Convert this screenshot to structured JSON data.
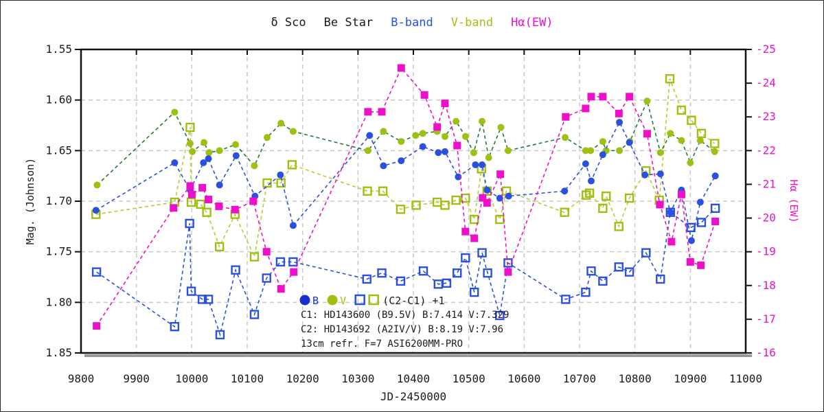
{
  "title": {
    "segments": [
      {
        "id": "object-name",
        "text": "δ Sco",
        "color": "#1a1a1a"
      },
      {
        "id": "object-type",
        "text": "Be Star",
        "color": "#1a1a1a"
      },
      {
        "id": "b-band",
        "text": "B-band",
        "color": "#2b50dd"
      },
      {
        "id": "v-band",
        "text": "V-band",
        "color": "#9fc013"
      },
      {
        "id": "halpha",
        "text": "Hα(EW)",
        "color": "#ee10c8"
      }
    ]
  },
  "chart_data": {
    "type": "line",
    "x_axis": {
      "label": "JD-2450000",
      "min": 9800,
      "max": 11000,
      "ticks": [
        "9800",
        "9900",
        "10000",
        "10100",
        "10200",
        "10300",
        "10400",
        "10500",
        "10600",
        "10700",
        "10800",
        "10900",
        "11000"
      ]
    },
    "y_axis_left": {
      "label": "Mag. (Johnson)",
      "min": 1.55,
      "max": 1.85,
      "ticks": [
        "1.55",
        "1.60",
        "1.65",
        "1.70",
        "1.75",
        "1.80",
        "1.85"
      ],
      "color": "#1a1a1a"
    },
    "y_axis_right": {
      "label": "Hα (EW)",
      "min": -25,
      "max": -16,
      "ticks": [
        "-25",
        "-24",
        "-23",
        "-22",
        "-21",
        "-20",
        "-19",
        "-18",
        "-17",
        "-16"
      ],
      "color": "#ee10c8"
    },
    "grid": {
      "color": "#c9c9c9",
      "style": "dashed"
    },
    "series": [
      {
        "name": "(C2-C1)+1 V",
        "axis": "left",
        "marker": "open-square",
        "marker_color": "#9fc013",
        "line_color": "#b6ce2a",
        "points": [
          [
            9827,
            1.713
          ],
          [
            9969,
            1.701
          ],
          [
            9997,
            1.627
          ],
          [
            9999,
            1.701
          ],
          [
            10016,
            1.703
          ],
          [
            10027,
            1.711
          ],
          [
            10050,
            1.745
          ],
          [
            10078,
            1.713
          ],
          [
            10113,
            1.755
          ],
          [
            10136,
            1.682
          ],
          [
            10161,
            1.682
          ],
          [
            10181,
            1.664
          ],
          [
            10317,
            1.69
          ],
          [
            10345,
            1.69
          ],
          [
            10377,
            1.708
          ],
          [
            10405,
            1.704
          ],
          [
            10443,
            1.701
          ],
          [
            10457,
            1.704
          ],
          [
            10477,
            1.699
          ],
          [
            10494,
            1.697
          ],
          [
            10510,
            1.718
          ],
          [
            10523,
            1.668
          ],
          [
            10533,
            1.69
          ],
          [
            10556,
            1.718
          ],
          [
            10568,
            1.69
          ],
          [
            10673,
            1.711
          ],
          [
            10712,
            1.694
          ],
          [
            10718,
            1.692
          ],
          [
            10742,
            1.707
          ],
          [
            10748,
            1.695
          ],
          [
            10771,
            1.725
          ],
          [
            10790,
            1.697
          ],
          [
            10820,
            1.67
          ],
          [
            10844,
            1.699
          ],
          [
            10863,
            1.579
          ],
          [
            10884,
            1.61
          ],
          [
            10902,
            1.62
          ],
          [
            10920,
            1.633
          ],
          [
            10944,
            1.643
          ]
        ]
      },
      {
        "name": "(C2-C1)+1 B",
        "axis": "left",
        "marker": "open-square",
        "marker_color": "#2b50dd",
        "line_color": "#2b50dd",
        "points": [
          [
            9828,
            1.77
          ],
          [
            9969,
            1.824
          ],
          [
            9996,
            1.722
          ],
          [
            9999,
            1.789
          ],
          [
            10019,
            1.797
          ],
          [
            10030,
            1.797
          ],
          [
            10051,
            1.832
          ],
          [
            10079,
            1.768
          ],
          [
            10113,
            1.812
          ],
          [
            10135,
            1.776
          ],
          [
            10160,
            1.76
          ],
          [
            10183,
            1.76
          ],
          [
            10316,
            1.777
          ],
          [
            10343,
            1.771
          ],
          [
            10377,
            1.779
          ],
          [
            10418,
            1.769
          ],
          [
            10445,
            1.782
          ],
          [
            10460,
            1.781
          ],
          [
            10479,
            1.771
          ],
          [
            10494,
            1.756
          ],
          [
            10510,
            1.79
          ],
          [
            10524,
            1.751
          ],
          [
            10534,
            1.771
          ],
          [
            10556,
            1.813
          ],
          [
            10571,
            1.761
          ],
          [
            10675,
            1.797
          ],
          [
            10711,
            1.79
          ],
          [
            10721,
            1.769
          ],
          [
            10742,
            1.779
          ],
          [
            10771,
            1.765
          ],
          [
            10790,
            1.77
          ],
          [
            10820,
            1.751
          ],
          [
            10846,
            1.777
          ],
          [
            10864,
            1.711
          ],
          [
            10901,
            1.726
          ],
          [
            10920,
            1.721
          ],
          [
            10945,
            1.707
          ]
        ]
      },
      {
        "name": "V",
        "axis": "left",
        "marker": "filled-circle",
        "marker_color": "#9fc013",
        "line_color": "#1e7a35",
        "points": [
          [
            9829,
            1.684
          ],
          [
            9969,
            1.612
          ],
          [
            9997,
            1.643
          ],
          [
            10001,
            1.651
          ],
          [
            10022,
            1.642
          ],
          [
            10031,
            1.652
          ],
          [
            10050,
            1.65
          ],
          [
            10079,
            1.644
          ],
          [
            10113,
            1.665
          ],
          [
            10136,
            1.637
          ],
          [
            10161,
            1.623
          ],
          [
            10183,
            1.631
          ],
          [
            10318,
            1.65
          ],
          [
            10346,
            1.631
          ],
          [
            10378,
            1.641
          ],
          [
            10404,
            1.635
          ],
          [
            10417,
            1.633
          ],
          [
            10443,
            1.631
          ],
          [
            10457,
            1.636
          ],
          [
            10477,
            1.621
          ],
          [
            10494,
            1.636
          ],
          [
            10509,
            1.652
          ],
          [
            10524,
            1.621
          ],
          [
            10536,
            1.657
          ],
          [
            10558,
            1.627
          ],
          [
            10571,
            1.65
          ],
          [
            10674,
            1.637
          ],
          [
            10711,
            1.65
          ],
          [
            10720,
            1.65
          ],
          [
            10742,
            1.641
          ],
          [
            10748,
            1.65
          ],
          [
            10772,
            1.65
          ],
          [
            10791,
            1.641
          ],
          [
            10822,
            1.601
          ],
          [
            10846,
            1.652
          ],
          [
            10864,
            1.633
          ],
          [
            10884,
            1.64
          ],
          [
            10900,
            1.662
          ],
          [
            10918,
            1.64
          ],
          [
            10944,
            1.651
          ]
        ]
      },
      {
        "name": "B",
        "axis": "left",
        "marker": "filled-circle",
        "marker_color": "#2b50dd",
        "line_color": "#2b50dd",
        "points": [
          [
            9827,
            1.709
          ],
          [
            9969,
            1.662
          ],
          [
            9997,
            1.689
          ],
          [
            10021,
            1.662
          ],
          [
            10030,
            1.658
          ],
          [
            10050,
            1.684
          ],
          [
            10080,
            1.655
          ],
          [
            10114,
            1.695
          ],
          [
            10160,
            1.674
          ],
          [
            10183,
            1.724
          ],
          [
            10321,
            1.635
          ],
          [
            10346,
            1.665
          ],
          [
            10378,
            1.66
          ],
          [
            10417,
            1.646
          ],
          [
            10445,
            1.652
          ],
          [
            10457,
            1.651
          ],
          [
            10481,
            1.676
          ],
          [
            10512,
            1.664
          ],
          [
            10524,
            1.664
          ],
          [
            10533,
            1.689
          ],
          [
            10556,
            1.697
          ],
          [
            10572,
            1.695
          ],
          [
            10673,
            1.69
          ],
          [
            10711,
            1.663
          ],
          [
            10721,
            1.68
          ],
          [
            10742,
            1.654
          ],
          [
            10772,
            1.622
          ],
          [
            10790,
            1.642
          ],
          [
            10818,
            1.674
          ],
          [
            10846,
            1.673
          ],
          [
            10864,
            1.711
          ],
          [
            10884,
            1.689
          ],
          [
            10902,
            1.739
          ],
          [
            10918,
            1.701
          ],
          [
            10945,
            1.675
          ]
        ]
      },
      {
        "name": "Hα EW",
        "axis": "right",
        "marker": "filled-square",
        "marker_color": "#ee10c8",
        "line_color": "#ee10c8",
        "points": [
          [
            9828,
            -16.8
          ],
          [
            9967,
            -20.3
          ],
          [
            9997,
            -20.95
          ],
          [
            10000,
            -20.7
          ],
          [
            10019,
            -20.9
          ],
          [
            10030,
            -20.55
          ],
          [
            10049,
            -20.35
          ],
          [
            10078,
            -20.25
          ],
          [
            10111,
            -20.5
          ],
          [
            10135,
            -19.0
          ],
          [
            10161,
            -17.9
          ],
          [
            10184,
            -18.4
          ],
          [
            10318,
            -23.15
          ],
          [
            10343,
            -23.15
          ],
          [
            10378,
            -24.45
          ],
          [
            10420,
            -23.65
          ],
          [
            10443,
            -22.7
          ],
          [
            10457,
            -23.4
          ],
          [
            10479,
            -22.15
          ],
          [
            10494,
            -19.6
          ],
          [
            10510,
            -19.4
          ],
          [
            10525,
            -20.6
          ],
          [
            10533,
            -20.45
          ],
          [
            10557,
            -21.3
          ],
          [
            10571,
            -18.4
          ],
          [
            10675,
            -23.0
          ],
          [
            10711,
            -23.25
          ],
          [
            10721,
            -23.6
          ],
          [
            10742,
            -23.6
          ],
          [
            10771,
            -23.1
          ],
          [
            10790,
            -23.6
          ],
          [
            10822,
            -22.5
          ],
          [
            10845,
            -20.4
          ],
          [
            10866,
            -19.3
          ],
          [
            10884,
            -20.7
          ],
          [
            10900,
            -18.7
          ],
          [
            10919,
            -18.6
          ],
          [
            10945,
            -19.9
          ]
        ]
      }
    ],
    "legend": {
      "markers": [
        {
          "type": "filled-circle",
          "color": "#1b2ed0",
          "label": "B",
          "label_color": "#1b2ed0"
        },
        {
          "type": "filled-circle",
          "color": "#9fc013",
          "label": "V",
          "label_color": "#9fc013"
        },
        {
          "type": "open-square",
          "color": "#2b50dd",
          "label": "",
          "label_color": "#1a1a1a"
        },
        {
          "type": "open-square",
          "color": "#9fc013",
          "label": "(C2-C1) +1",
          "label_color": "#1a1a1a"
        }
      ],
      "notes": [
        "C1: HD143600 (B9.5V)  B:7.414 V:7.329",
        "C2: HD143692 (A2IV/V)  B:8.19 V:7.96",
        "13cm refr. F=7   ASI6200MM-PRO"
      ]
    }
  }
}
